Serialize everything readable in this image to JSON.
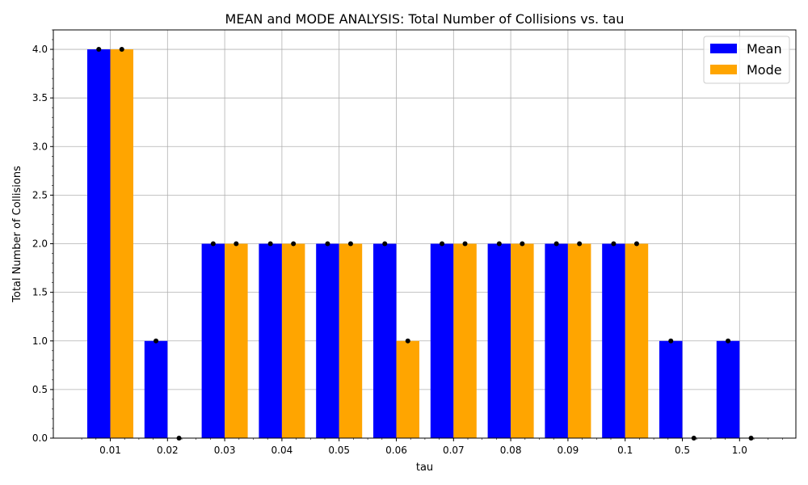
{
  "chart_data": {
    "type": "bar",
    "title": "MEAN and MODE ANALYSIS: Total Number of Collisions vs. tau",
    "xlabel": "tau",
    "ylabel": "Total Number of Collisions",
    "categories": [
      "0.01",
      "0.02",
      "0.03",
      "0.04",
      "0.05",
      "0.06",
      "0.07",
      "0.08",
      "0.09",
      "0.1",
      "0.5",
      "1.0"
    ],
    "series": [
      {
        "name": "Mean",
        "color": "#0000ff",
        "values": [
          4,
          1,
          2,
          2,
          2,
          2,
          2,
          2,
          2,
          2,
          1,
          1
        ]
      },
      {
        "name": "Mode",
        "color": "#ffa500",
        "values": [
          4,
          0,
          2,
          2,
          2,
          1,
          2,
          2,
          2,
          2,
          0,
          0
        ]
      }
    ],
    "ylim": [
      0,
      4.2
    ],
    "yticks": [
      "0.0",
      "0.5",
      "1.0",
      "1.5",
      "2.0",
      "2.5",
      "3.0",
      "3.5",
      "4.0"
    ],
    "grid": true,
    "legend_position": "top-right",
    "marker_color": "#000000"
  }
}
